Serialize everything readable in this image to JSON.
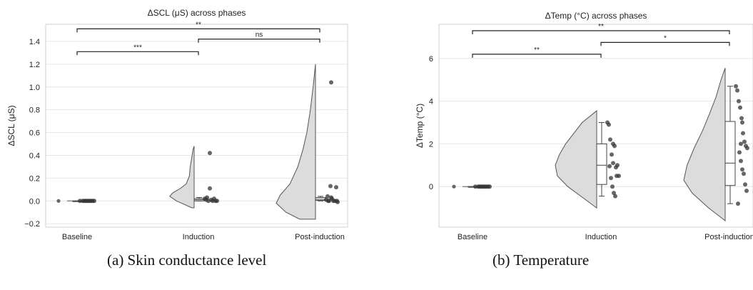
{
  "captions": {
    "a": "(a)  Skin conductance level",
    "b": "(b)  Temperature"
  },
  "chart_data": [
    {
      "type": "raincloud",
      "title": "ΔSCL (μS) across phases",
      "xlabel": "",
      "ylabel": "ΔSCL (μS)",
      "ylim": [
        -0.23,
        1.55
      ],
      "yticks": [
        -0.2,
        0.0,
        0.2,
        0.4,
        0.6,
        0.8,
        1.0,
        1.2,
        1.4
      ],
      "ytick_labels": [
        "−0.2",
        "0.0",
        "0.2",
        "0.4",
        "0.6",
        "0.8",
        "1.0",
        "1.2",
        "1.4"
      ],
      "grid": true,
      "categories": [
        "Baseline",
        "Induction",
        "Post-induction"
      ],
      "violins": [
        {
          "min": 0,
          "max": 0,
          "width": 0
        },
        {
          "min": -0.06,
          "max": 0.48,
          "profile": [
            [
              -0.06,
              0.06
            ],
            [
              0.0,
              0.45
            ],
            [
              0.04,
              0.62
            ],
            [
              0.07,
              0.55
            ],
            [
              0.11,
              0.35
            ],
            [
              0.15,
              0.2
            ],
            [
              0.22,
              0.12
            ],
            [
              0.3,
              0.1
            ],
            [
              0.38,
              0.06
            ],
            [
              0.45,
              0.03
            ],
            [
              0.48,
              0.0
            ]
          ]
        },
        {
          "min": -0.16,
          "max": 1.2,
          "profile": [
            [
              -0.16,
              0.4
            ],
            [
              -0.1,
              0.75
            ],
            [
              -0.02,
              1.0
            ],
            [
              0.05,
              0.9
            ],
            [
              0.15,
              0.65
            ],
            [
              0.3,
              0.45
            ],
            [
              0.45,
              0.32
            ],
            [
              0.6,
              0.22
            ],
            [
              0.8,
              0.13
            ],
            [
              1.0,
              0.06
            ],
            [
              1.2,
              0.0
            ]
          ]
        }
      ],
      "boxes": [
        {
          "q1": 0.0,
          "median": 0.0,
          "q3": 0.0,
          "whisker_low": 0.0,
          "whisker_high": 0.0
        },
        {
          "q1": 0.0,
          "median": 0.01,
          "q3": 0.02,
          "whisker_low": 0.0,
          "whisker_high": 0.03
        },
        {
          "q1": 0.005,
          "median": 0.015,
          "q3": 0.03,
          "whisker_low": 0.0,
          "whisker_high": 0.04
        }
      ],
      "outliers": [
        0,
        0.42,
        1.04
      ],
      "points": [
        [
          [
            0.0,
            0.0
          ],
          [
            0.04,
            0.0
          ],
          [
            0.06,
            0.0
          ],
          [
            0.08,
            0.0
          ],
          [
            0.1,
            0.0
          ],
          [
            0.12,
            0.0
          ],
          [
            0.14,
            0.0
          ],
          [
            0.16,
            0.0
          ],
          [
            0.18,
            0.0
          ],
          [
            0.2,
            0.0
          ]
        ],
        [
          [
            0.05,
            0.02
          ],
          [
            0.08,
            0.03
          ],
          [
            0.1,
            0.0
          ],
          [
            0.12,
            0.11
          ],
          [
            0.14,
            0.01
          ],
          [
            0.16,
            0.0
          ],
          [
            0.18,
            0.02
          ],
          [
            0.2,
            0.0
          ],
          [
            0.22,
            0.0
          ],
          [
            0.07,
            0.01
          ]
        ],
        [
          [
            0.05,
            0.01
          ],
          [
            0.07,
            0.04
          ],
          [
            0.09,
            0.0
          ],
          [
            0.11,
            0.13
          ],
          [
            0.13,
            0.02
          ],
          [
            0.15,
            0.0
          ],
          [
            0.17,
            0.0
          ],
          [
            0.19,
            0.12
          ],
          [
            0.21,
            -0.01
          ],
          [
            0.08,
            0.0
          ],
          [
            0.12,
            0.03
          ],
          [
            0.2,
            0.0
          ]
        ]
      ],
      "brackets": [
        {
          "from": 0,
          "to": 2,
          "y": 1.51,
          "label": "**"
        },
        {
          "from": 0,
          "to": 1,
          "y": 1.31,
          "label": "***"
        },
        {
          "from": 1,
          "to": 2,
          "y": 1.42,
          "label": "ns"
        }
      ]
    },
    {
      "type": "raincloud",
      "title": "ΔTemp (°C) across phases",
      "xlabel": "",
      "ylabel": "ΔTemp (°C)",
      "ylim": [
        -1.9,
        7.6
      ],
      "yticks": [
        0,
        2,
        4,
        6
      ],
      "ytick_labels": [
        "0",
        "2",
        "4",
        "6"
      ],
      "grid": true,
      "categories": [
        "Baseline",
        "Induction",
        "Post-induction"
      ],
      "violins": [
        {
          "min": 0,
          "max": 0,
          "width": 0
        },
        {
          "min": -1.0,
          "max": 3.55,
          "profile": [
            [
              -1.0,
              0.0
            ],
            [
              -0.5,
              0.35
            ],
            [
              0.0,
              0.7
            ],
            [
              0.5,
              0.95
            ],
            [
              1.0,
              1.0
            ],
            [
              1.5,
              0.9
            ],
            [
              2.0,
              0.75
            ],
            [
              2.5,
              0.55
            ],
            [
              3.0,
              0.35
            ],
            [
              3.55,
              0.0
            ]
          ]
        },
        {
          "min": -1.6,
          "max": 5.55,
          "profile": [
            [
              -1.6,
              0.0
            ],
            [
              -1.0,
              0.4
            ],
            [
              -0.3,
              0.8
            ],
            [
              0.3,
              1.0
            ],
            [
              1.0,
              0.92
            ],
            [
              1.8,
              0.75
            ],
            [
              2.6,
              0.55
            ],
            [
              3.4,
              0.38
            ],
            [
              4.2,
              0.22
            ],
            [
              5.0,
              0.1
            ],
            [
              5.55,
              0.0
            ]
          ]
        }
      ],
      "boxes": [
        {
          "q1": 0.0,
          "median": 0.0,
          "q3": 0.0,
          "whisker_low": 0.0,
          "whisker_high": 0.0
        },
        {
          "q1": 0.1,
          "median": 1.0,
          "q3": 2.0,
          "whisker_low": -0.45,
          "whisker_high": 3.0
        },
        {
          "q1": 0.05,
          "median": 1.1,
          "q3": 3.05,
          "whisker_low": -0.8,
          "whisker_high": 4.7
        }
      ],
      "outliers": [
        0
      ],
      "points": [
        [
          [
            0.0,
            0.0
          ],
          [
            0.04,
            0.0
          ],
          [
            0.06,
            0.0
          ],
          [
            0.08,
            0.0
          ],
          [
            0.1,
            0.0
          ],
          [
            0.12,
            0.0
          ],
          [
            0.14,
            0.0
          ],
          [
            0.16,
            0.0
          ],
          [
            0.18,
            0.0
          ],
          [
            0.2,
            0.0
          ]
        ],
        [
          [
            0.05,
            3.0
          ],
          [
            0.07,
            2.9
          ],
          [
            0.09,
            2.2
          ],
          [
            0.11,
            1.5
          ],
          [
            0.13,
            1.1
          ],
          [
            0.15,
            1.9
          ],
          [
            0.17,
            0.9
          ],
          [
            0.19,
            1.0
          ],
          [
            0.21,
            0.5
          ],
          [
            0.1,
            0.4
          ],
          [
            0.12,
            0.0
          ],
          [
            0.14,
            -0.3
          ],
          [
            0.16,
            -0.45
          ],
          [
            0.18,
            0.5
          ],
          [
            0.08,
            0.95
          ],
          [
            0.13,
            2.0
          ]
        ],
        [
          [
            0.05,
            4.7
          ],
          [
            0.07,
            4.5
          ],
          [
            0.09,
            4.0
          ],
          [
            0.11,
            3.7
          ],
          [
            0.13,
            3.2
          ],
          [
            0.15,
            2.5
          ],
          [
            0.17,
            2.1
          ],
          [
            0.19,
            1.9
          ],
          [
            0.21,
            1.8
          ],
          [
            0.1,
            1.6
          ],
          [
            0.12,
            1.2
          ],
          [
            0.14,
            0.8
          ],
          [
            0.16,
            0.6
          ],
          [
            0.18,
            0.1
          ],
          [
            0.2,
            -0.2
          ],
          [
            0.08,
            -0.8
          ],
          [
            0.14,
            3.0
          ],
          [
            0.12,
            2.0
          ]
        ]
      ],
      "brackets": [
        {
          "from": 0,
          "to": 2,
          "y": 7.3,
          "label": "**"
        },
        {
          "from": 0,
          "to": 1,
          "y": 6.2,
          "label": "**"
        },
        {
          "from": 1,
          "to": 2,
          "y": 6.75,
          "label": "*"
        }
      ]
    }
  ]
}
